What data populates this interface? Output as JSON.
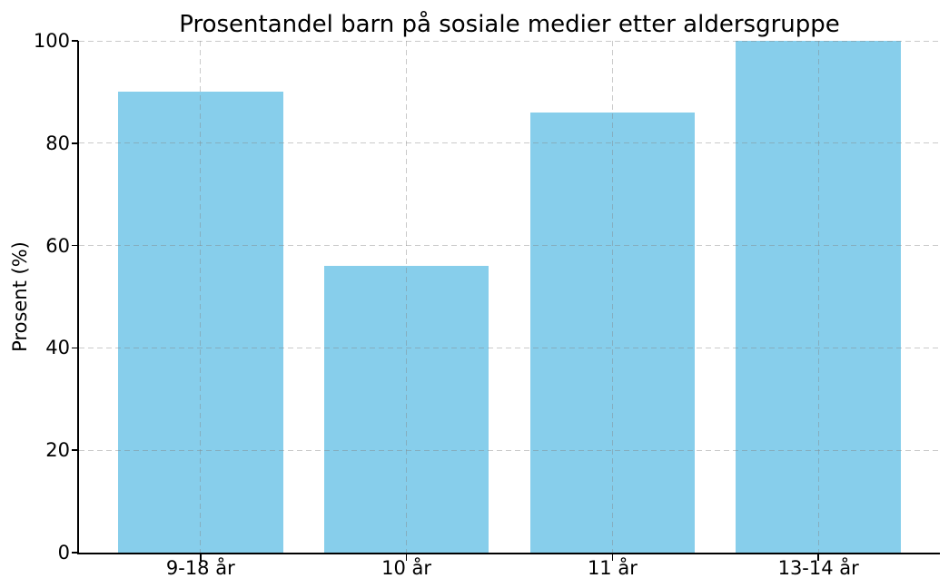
{
  "chart_data": {
    "type": "bar",
    "title": "Prosentandel barn på sosiale medier etter aldersgruppe",
    "xlabel": "",
    "ylabel": "Prosent (%)",
    "categories": [
      "9-18 år",
      "10 år",
      "11 år",
      "13-14 år"
    ],
    "values": [
      90,
      56,
      86,
      100
    ],
    "yticks": [
      0,
      20,
      40,
      60,
      80,
      100
    ],
    "ylim": [
      0,
      100
    ],
    "bar_width_fraction": 0.8,
    "grid": true,
    "grid_style": "dashed",
    "legend": null,
    "colors": {
      "bar_fill": "#87CEEB",
      "grid_line": "#b0b0b0",
      "axis_line": "#000000",
      "text": "#000000",
      "background": "#ffffff"
    }
  }
}
